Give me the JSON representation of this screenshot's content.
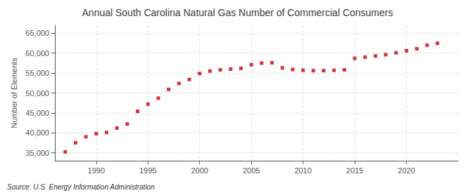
{
  "chart_data": {
    "type": "scatter",
    "title": "Annual South Carolina Natural Gas Number of Commercial Consumers",
    "ylabel": "Number of Elements",
    "annotations": [
      "Source: U.S. Energy Information Administration"
    ],
    "x": [
      1987,
      1988,
      1989,
      1990,
      1991,
      1992,
      1993,
      1994,
      1995,
      1996,
      1997,
      1998,
      1999,
      2000,
      2001,
      2002,
      2003,
      2004,
      2005,
      2006,
      2007,
      2008,
      2009,
      2010,
      2011,
      2012,
      2013,
      2014,
      2015,
      2016,
      2017,
      2018,
      2019,
      2020,
      2021,
      2022,
      2023
    ],
    "values": [
      35200,
      37500,
      39000,
      39800,
      40100,
      41200,
      42200,
      45400,
      47200,
      48700,
      50900,
      52400,
      53400,
      54900,
      55500,
      55800,
      56000,
      56200,
      57100,
      57500,
      57600,
      56300,
      55900,
      55700,
      55600,
      55600,
      55700,
      55800,
      58700,
      59000,
      59300,
      59600,
      60100,
      60600,
      61100,
      62000,
      62500
    ],
    "color": "#cc0000",
    "marker": "square",
    "xlim": [
      1986,
      2025
    ],
    "xticks": [
      1990,
      1995,
      2000,
      2005,
      2010,
      2015,
      2020
    ],
    "ylim": [
      33000,
      67000
    ],
    "yticks": [
      {
        "value": 35000,
        "label": "35,000"
      },
      {
        "value": 40000,
        "label": "40,000"
      },
      {
        "value": 45000,
        "label": "45,000"
      },
      {
        "value": 50000,
        "label": "50,000"
      },
      {
        "value": 55000,
        "label": "55,000"
      },
      {
        "value": 60000,
        "label": "60,000"
      },
      {
        "value": 65000,
        "label": "65,000"
      }
    ],
    "grid": true
  }
}
